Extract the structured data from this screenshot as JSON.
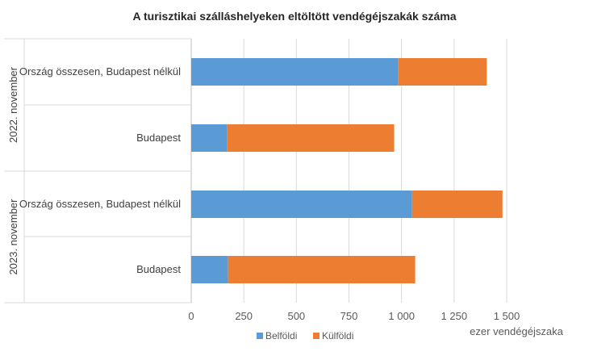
{
  "chart_data": {
    "type": "bar",
    "orientation": "horizontal",
    "stacked": true,
    "title": "A turisztikai szálláshelyeken eltöltött vendégéjszakák száma",
    "xlabel": "ezer vendégéjszaka",
    "xlim": [
      0,
      1500
    ],
    "xticks": [
      0,
      250,
      500,
      750,
      1000,
      1250,
      1500
    ],
    "xtick_labels": [
      "0",
      "250",
      "500",
      "750",
      "1 000",
      "1 250",
      "1 500"
    ],
    "grid": true,
    "legend_position": "bottom",
    "groups": [
      {
        "label": "2022. november",
        "categories": [
          "Ország összesen, Budapest nélkül",
          "Budapest"
        ]
      },
      {
        "label": "2023. november",
        "categories": [
          "Ország összesen, Budapest nélkül",
          "Budapest"
        ]
      }
    ],
    "series": [
      {
        "name": "Belföldi",
        "color": "#5B9BD5",
        "values": [
          985,
          170,
          1050,
          175
        ]
      },
      {
        "name": "Külföldi",
        "color": "#ED7D31",
        "values": [
          420,
          795,
          430,
          890
        ]
      }
    ]
  }
}
